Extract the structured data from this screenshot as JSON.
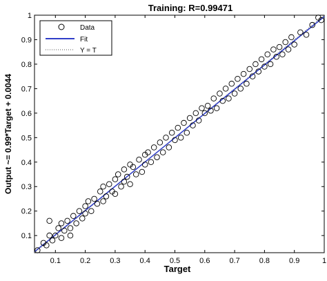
{
  "chart_data": {
    "type": "scatter",
    "title": "Training: R=0.99471",
    "xlabel": "Target",
    "ylabel": "Output ~= 0.99*Target + 0.0044",
    "xlim": [
      0.03,
      1.0
    ],
    "ylim": [
      0.03,
      1.0
    ],
    "x_ticks": [
      "0.1",
      "0.2",
      "0.3",
      "0.4",
      "0.5",
      "0.6",
      "0.7",
      "0.8",
      "0.9",
      "1"
    ],
    "y_ticks": [
      "0.1",
      "0.2",
      "0.3",
      "0.4",
      "0.5",
      "0.6",
      "0.7",
      "0.8",
      "0.9",
      "1"
    ],
    "grid": false,
    "legend_position": "top-left",
    "legend": [
      {
        "label": "Data",
        "style": "circle-marker",
        "color": "#000000"
      },
      {
        "label": "Fit",
        "style": "solid-line",
        "color": "#2f3ec8"
      },
      {
        "label": "Y = T",
        "style": "dotted-line",
        "color": "#555555"
      }
    ],
    "fit": {
      "slope": 0.99,
      "intercept": 0.0044
    },
    "series": [
      {
        "name": "Data",
        "points": [
          [
            0.04,
            0.04
          ],
          [
            0.06,
            0.07
          ],
          [
            0.07,
            0.06
          ],
          [
            0.08,
            0.1
          ],
          [
            0.08,
            0.16
          ],
          [
            0.09,
            0.08
          ],
          [
            0.1,
            0.1
          ],
          [
            0.11,
            0.13
          ],
          [
            0.12,
            0.09
          ],
          [
            0.12,
            0.15
          ],
          [
            0.13,
            0.12
          ],
          [
            0.14,
            0.16
          ],
          [
            0.15,
            0.13
          ],
          [
            0.15,
            0.1
          ],
          [
            0.16,
            0.18
          ],
          [
            0.17,
            0.15
          ],
          [
            0.18,
            0.2
          ],
          [
            0.19,
            0.17
          ],
          [
            0.2,
            0.22
          ],
          [
            0.2,
            0.19
          ],
          [
            0.21,
            0.24
          ],
          [
            0.22,
            0.2
          ],
          [
            0.23,
            0.25
          ],
          [
            0.24,
            0.23
          ],
          [
            0.25,
            0.28
          ],
          [
            0.26,
            0.24
          ],
          [
            0.26,
            0.3
          ],
          [
            0.27,
            0.26
          ],
          [
            0.28,
            0.31
          ],
          [
            0.29,
            0.28
          ],
          [
            0.3,
            0.33
          ],
          [
            0.3,
            0.27
          ],
          [
            0.31,
            0.35
          ],
          [
            0.32,
            0.3
          ],
          [
            0.33,
            0.37
          ],
          [
            0.33,
            0.32
          ],
          [
            0.34,
            0.34
          ],
          [
            0.35,
            0.39
          ],
          [
            0.35,
            0.31
          ],
          [
            0.36,
            0.38
          ],
          [
            0.37,
            0.35
          ],
          [
            0.38,
            0.41
          ],
          [
            0.39,
            0.36
          ],
          [
            0.4,
            0.43
          ],
          [
            0.4,
            0.39
          ],
          [
            0.41,
            0.44
          ],
          [
            0.42,
            0.4
          ],
          [
            0.43,
            0.46
          ],
          [
            0.44,
            0.42
          ],
          [
            0.45,
            0.48
          ],
          [
            0.46,
            0.44
          ],
          [
            0.47,
            0.5
          ],
          [
            0.48,
            0.46
          ],
          [
            0.49,
            0.52
          ],
          [
            0.5,
            0.49
          ],
          [
            0.51,
            0.54
          ],
          [
            0.52,
            0.5
          ],
          [
            0.53,
            0.56
          ],
          [
            0.54,
            0.52
          ],
          [
            0.55,
            0.58
          ],
          [
            0.56,
            0.55
          ],
          [
            0.57,
            0.6
          ],
          [
            0.58,
            0.57
          ],
          [
            0.59,
            0.62
          ],
          [
            0.6,
            0.6
          ],
          [
            0.61,
            0.63
          ],
          [
            0.62,
            0.61
          ],
          [
            0.63,
            0.66
          ],
          [
            0.64,
            0.62
          ],
          [
            0.65,
            0.68
          ],
          [
            0.66,
            0.65
          ],
          [
            0.67,
            0.7
          ],
          [
            0.68,
            0.66
          ],
          [
            0.69,
            0.72
          ],
          [
            0.7,
            0.68
          ],
          [
            0.71,
            0.74
          ],
          [
            0.72,
            0.7
          ],
          [
            0.73,
            0.76
          ],
          [
            0.74,
            0.72
          ],
          [
            0.75,
            0.78
          ],
          [
            0.76,
            0.75
          ],
          [
            0.77,
            0.8
          ],
          [
            0.78,
            0.77
          ],
          [
            0.79,
            0.82
          ],
          [
            0.8,
            0.79
          ],
          [
            0.81,
            0.84
          ],
          [
            0.82,
            0.8
          ],
          [
            0.83,
            0.86
          ],
          [
            0.84,
            0.83
          ],
          [
            0.85,
            0.87
          ],
          [
            0.86,
            0.84
          ],
          [
            0.87,
            0.89
          ],
          [
            0.88,
            0.86
          ],
          [
            0.89,
            0.91
          ],
          [
            0.9,
            0.88
          ],
          [
            0.92,
            0.93
          ],
          [
            0.94,
            0.92
          ],
          [
            0.96,
            0.96
          ],
          [
            0.98,
            0.99
          ],
          [
            0.99,
            0.98
          ]
        ]
      }
    ]
  }
}
